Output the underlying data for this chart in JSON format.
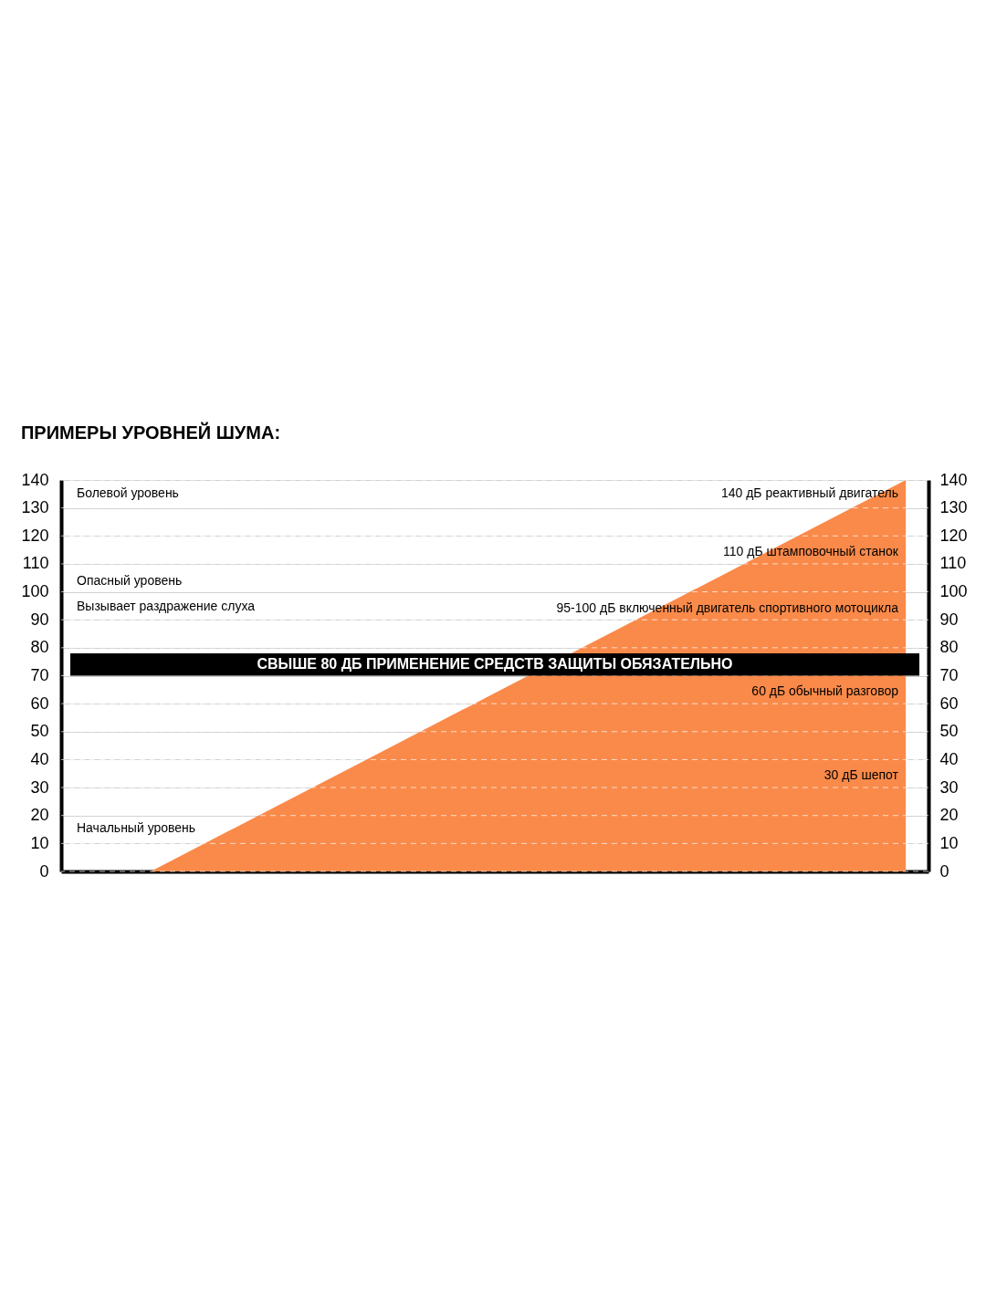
{
  "chart_data": {
    "type": "area",
    "title": "ПРИМЕРЫ УРОВНЕЙ ШУМА:",
    "categories": [
      null,
      null,
      null,
      null,
      null,
      null,
      null,
      null
    ],
    "values": [
      0,
      20,
      40,
      60,
      80,
      100,
      120,
      140
    ],
    "color": "#fa8a4a",
    "ylim": [
      0,
      140
    ],
    "yticks": [
      0,
      10,
      20,
      30,
      40,
      50,
      60,
      70,
      80,
      90,
      100,
      110,
      120,
      130,
      140
    ],
    "y2lim": [
      0,
      140
    ],
    "y2ticks": [
      0,
      10,
      20,
      30,
      40,
      50,
      60,
      70,
      80,
      90,
      100,
      110,
      120,
      130,
      140
    ],
    "tick_labels": "y",
    "grid": "y",
    "bands": [
      {
        "axis": "y",
        "from": 70,
        "to": 78,
        "label": "СВЫШЕ 80 ДБ ПРИМЕНЕНИЕ СРЕДСТВ ЗАЩИТЫ ОБЯЗАТЕЛЬНО",
        "color": "#000000"
      }
    ],
    "annotations": [
      "Болевой уровень",
      "Опасный уровень",
      "Вызывает раздражение слуха",
      "Начальный уровень",
      "140 дБ реактивный двигатель",
      "110 дБ штамповочный станок",
      "95-100 дБ включенный двигатель спортивного мотоцикла",
      "60 дБ обычный разговор",
      "30 дБ шепот"
    ]
  }
}
